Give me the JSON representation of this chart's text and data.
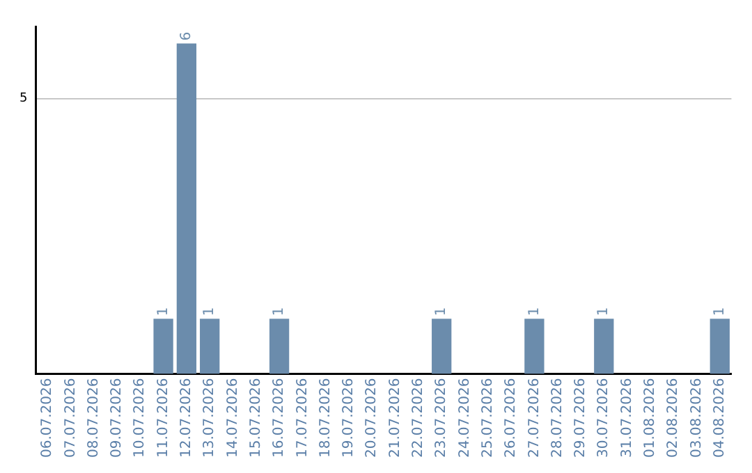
{
  "chart_data": {
    "type": "bar",
    "categories": [
      "06.07.2026",
      "07.07.2026",
      "08.07.2026",
      "09.07.2026",
      "10.07.2026",
      "11.07.2026",
      "12.07.2026",
      "13.07.2026",
      "14.07.2026",
      "15.07.2026",
      "16.07.2026",
      "17.07.2026",
      "18.07.2026",
      "19.07.2026",
      "20.07.2026",
      "21.07.2026",
      "22.07.2026",
      "23.07.2026",
      "24.07.2026",
      "25.07.2026",
      "26.07.2026",
      "27.07.2026",
      "28.07.2026",
      "29.07.2026",
      "30.07.2026",
      "31.07.2026",
      "01.08.2026",
      "02.08.2026",
      "03.08.2026",
      "04.08.2026"
    ],
    "values": [
      0,
      0,
      0,
      0,
      0,
      1,
      6,
      1,
      0,
      0,
      1,
      0,
      0,
      0,
      0,
      0,
      0,
      1,
      0,
      0,
      0,
      1,
      0,
      0,
      1,
      0,
      0,
      0,
      0,
      1
    ],
    "value_labels": [
      null,
      null,
      null,
      null,
      null,
      "1",
      "6",
      "1",
      null,
      null,
      "1",
      null,
      null,
      null,
      null,
      null,
      null,
      "1",
      null,
      null,
      null,
      "1",
      null,
      null,
      "1",
      null,
      null,
      null,
      null,
      "1"
    ],
    "color": "#6b8cac",
    "ylim": [
      0,
      6.3
    ],
    "yticks": [
      5
    ],
    "grid": "y",
    "legend": false
  }
}
